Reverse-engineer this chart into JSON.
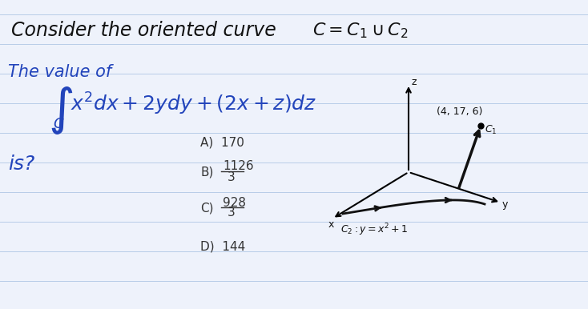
{
  "bg_color": "#eef2fb",
  "line_color": "#b8cce8",
  "handwriting_color": "#2244bb",
  "print_color": "#333333",
  "black_color": "#111111",
  "title_text": "Consider the oriented curve",
  "title_formula": "$C = C_1 \\cup C_2$",
  "value_of": "The value of",
  "is_text": "is?",
  "answer_A": "A)  170",
  "answer_B_num": "1126",
  "answer_B_den": "3",
  "answer_C_num": "928",
  "answer_C_den": "3",
  "answer_D": "D)  144",
  "point_label": "(4, 17, 6)",
  "c1_label": "$C_1$",
  "c2_label": "$C_2 : y = x^2 + 1$",
  "x_label": "x",
  "y_label": "y",
  "z_label": "z",
  "line_y_positions": [
    18,
    55,
    92,
    129,
    166,
    203,
    240,
    277,
    314,
    351,
    386
  ],
  "figsize": [
    7.34,
    3.86
  ],
  "dpi": 100
}
